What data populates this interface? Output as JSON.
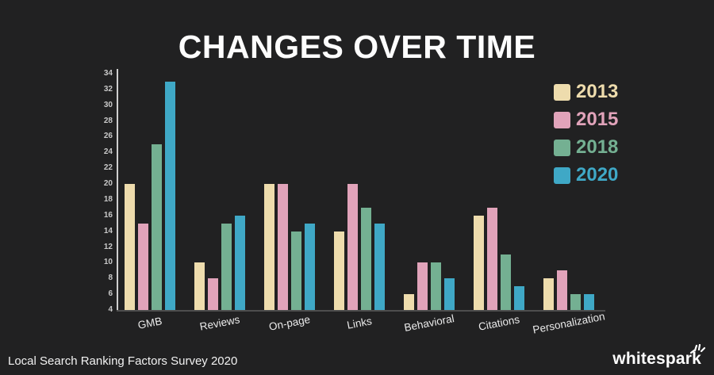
{
  "background": "#212122",
  "title": "CHANGES OVER TIME",
  "footer": {
    "source": "Local Search Ranking Factors Survey 2020",
    "brand": "whitespark",
    "brand_icon": "spark-burst-icon"
  },
  "colors": {
    "background": "#212122",
    "title_text": "#fdfdfd",
    "axis_line": "#cfcfcf",
    "baseline": "#4e4e4e",
    "ytick_text": "#c9c9c9",
    "xlabel_text": "#ebebeb"
  },
  "chart_data": {
    "type": "bar",
    "title": "CHANGES OVER TIME",
    "xlabel": "",
    "ylabel": "",
    "categories": [
      "GMB",
      "Reviews",
      "On-page",
      "Links",
      "Behavioral",
      "Citations",
      "Personalization"
    ],
    "series": [
      {
        "name": "2013",
        "color": "#eedcad",
        "values": [
          20,
          10,
          20,
          14,
          6,
          16,
          8
        ]
      },
      {
        "name": "2015",
        "color": "#e1a3ba",
        "values": [
          15,
          8,
          20,
          20,
          10,
          17,
          9
        ]
      },
      {
        "name": "2018",
        "color": "#74b092",
        "values": [
          25,
          15,
          14,
          17,
          10,
          11,
          6
        ]
      },
      {
        "name": "2020",
        "color": "#3fa8c6",
        "values": [
          33,
          16,
          15,
          15,
          8,
          7,
          6
        ]
      }
    ],
    "ylim": [
      4,
      34
    ],
    "yticks": [
      4,
      6,
      8,
      10,
      12,
      14,
      16,
      18,
      20,
      22,
      24,
      26,
      28,
      30,
      32,
      34
    ],
    "grid": false,
    "legend_position": "top-right"
  }
}
